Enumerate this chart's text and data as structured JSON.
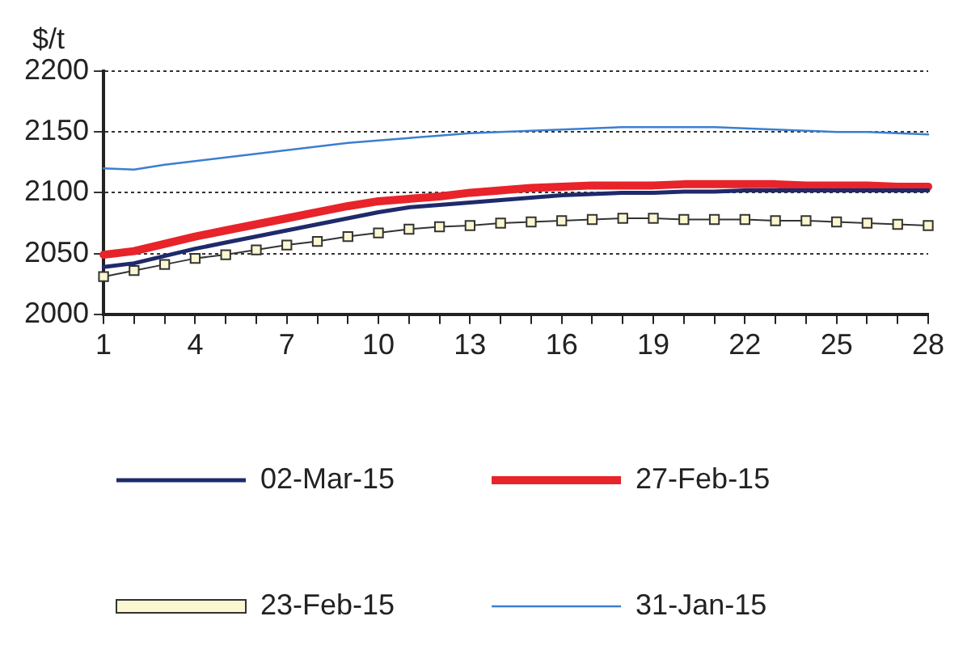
{
  "chart_data": {
    "type": "line",
    "ylabel": "$/t",
    "categories": [
      "1",
      null,
      null,
      "4",
      null,
      null,
      "7",
      null,
      null,
      "10",
      null,
      null,
      "13",
      null,
      null,
      "16",
      null,
      null,
      "19",
      null,
      null,
      "22",
      null,
      null,
      "25",
      null,
      null,
      "28"
    ],
    "ylim": [
      2000,
      2200
    ],
    "yticks": [
      2000,
      2050,
      2100,
      2150,
      2200
    ],
    "grid": "y",
    "legend": "bottom",
    "series": [
      {
        "name": "02-Mar-15",
        "color": "#1f2a6b",
        "marker": "none",
        "values": [
          2039,
          2042,
          2048,
          2054,
          2059,
          2064,
          2069,
          2074,
          2079,
          2084,
          2088,
          2090,
          2092,
          2094,
          2096,
          2098,
          2099,
          2100,
          2100,
          2101,
          2101,
          2102,
          2102,
          2102,
          2102,
          2102,
          2102,
          2102
        ]
      },
      {
        "name": "27-Feb-15",
        "color": "#e8232a",
        "marker": "none",
        "values": [
          2049,
          2052,
          2058,
          2064,
          2069,
          2074,
          2079,
          2084,
          2089,
          2093,
          2095,
          2097,
          2100,
          2102,
          2104,
          2105,
          2106,
          2106,
          2106,
          2107,
          2107,
          2107,
          2107,
          2106,
          2106,
          2106,
          2105,
          2105
        ]
      },
      {
        "name": "23-Feb-15",
        "color": "#333333",
        "marker": "square",
        "values": [
          2031,
          2036,
          2041,
          2046,
          2049,
          2053,
          2057,
          2060,
          2064,
          2067,
          2070,
          2072,
          2073,
          2075,
          2076,
          2077,
          2078,
          2079,
          2079,
          2078,
          2078,
          2078,
          2077,
          2077,
          2076,
          2075,
          2074,
          2073
        ]
      },
      {
        "name": "31-Jan-15",
        "color": "#3b7fd0",
        "marker": "none",
        "values": [
          2120,
          2119,
          2123,
          2126,
          2129,
          2132,
          2135,
          2138,
          2141,
          2143,
          2145,
          2147,
          2149,
          2150,
          2151,
          2152,
          2153,
          2154,
          2154,
          2154,
          2154,
          2153,
          2152,
          2151,
          2150,
          2150,
          2149,
          2148
        ]
      }
    ]
  }
}
